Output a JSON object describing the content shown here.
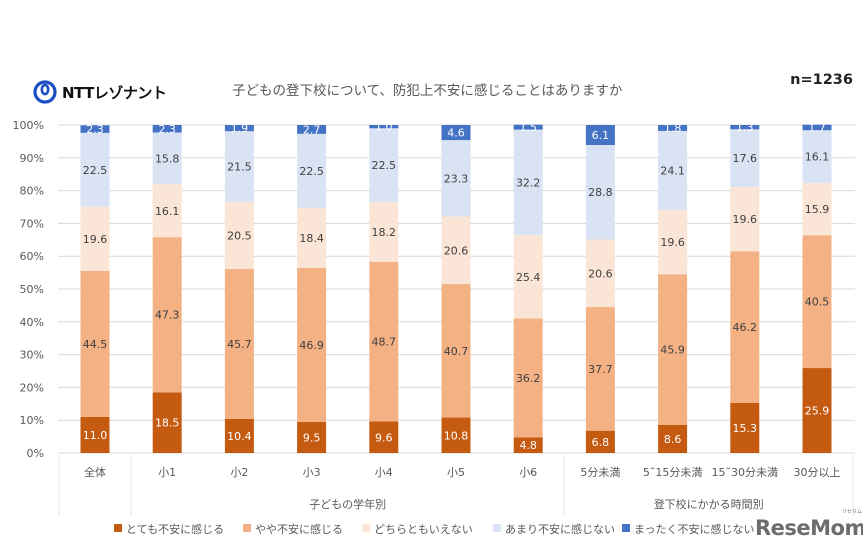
{
  "header": {
    "logo_text": "NTTレゾナント",
    "title": "子どもの登下校について、防犯上不安に感じることはありますか",
    "n_label": "n=1236"
  },
  "watermark": {
    "text": "ReseMom",
    "ruby": "リセマム"
  },
  "chart_data": {
    "type": "bar",
    "stacked": true,
    "percent": true,
    "title": "子どもの登下校について、防犯上不安に感じることはありますか",
    "xlabel": "",
    "ylabel": "",
    "ylim": [
      0,
      100
    ],
    "yticks": [
      "0%",
      "10%",
      "20%",
      "30%",
      "40%",
      "50%",
      "60%",
      "70%",
      "80%",
      "90%",
      "100%"
    ],
    "grid": true,
    "legend_position": "bottom",
    "categories": [
      "全体",
      "小1",
      "小2",
      "小3",
      "小4",
      "小5",
      "小6",
      "5分未満",
      "5~15分未満",
      "15~30分未満",
      "30分以上"
    ],
    "category_labels": [
      "全体",
      "小1",
      "小2",
      "小3",
      "小4",
      "小5",
      "小6",
      "5分未満",
      "5˜15分未満",
      "15˜30分未満",
      "30分以上"
    ],
    "groups": [
      {
        "label": "",
        "start": 0,
        "end": 0
      },
      {
        "label": "子どもの学年別",
        "start": 1,
        "end": 6
      },
      {
        "label": "登下校にかかる時間別",
        "start": 7,
        "end": 10
      }
    ],
    "series": [
      {
        "name": "とても不安に感じる",
        "color": "#c55a11",
        "label_color": "#ffffff",
        "values": [
          11.0,
          18.5,
          10.4,
          9.5,
          9.6,
          10.8,
          4.8,
          6.8,
          8.6,
          15.3,
          25.9
        ]
      },
      {
        "name": "やや不安に感じる",
        "color": "#f4b183",
        "label_color": "#404040",
        "values": [
          44.5,
          47.3,
          45.7,
          46.9,
          48.7,
          40.7,
          36.2,
          37.7,
          45.9,
          46.2,
          40.5
        ]
      },
      {
        "name": "どちらともいえない",
        "color": "#fbe5d6",
        "label_color": "#404040",
        "values": [
          19.6,
          16.1,
          20.5,
          18.4,
          18.2,
          20.6,
          25.4,
          20.6,
          19.6,
          19.6,
          15.9
        ]
      },
      {
        "name": "あまり不安に感じない",
        "color": "#dae3f3",
        "label_color": "#404040",
        "values": [
          22.5,
          15.8,
          21.5,
          22.5,
          22.5,
          23.3,
          32.2,
          28.8,
          24.1,
          17.6,
          16.1
        ]
      },
      {
        "name": "まったく不安に感じない",
        "color": "#4472c4",
        "label_color": "#ffffff",
        "values": [
          2.3,
          2.3,
          1.9,
          2.7,
          1.0,
          4.6,
          1.5,
          6.1,
          1.8,
          1.3,
          1.7
        ]
      }
    ]
  },
  "colors": {
    "logo_blue": "#1a4fc4",
    "grid": "#d9d9d9",
    "axis_text": "#595959"
  }
}
